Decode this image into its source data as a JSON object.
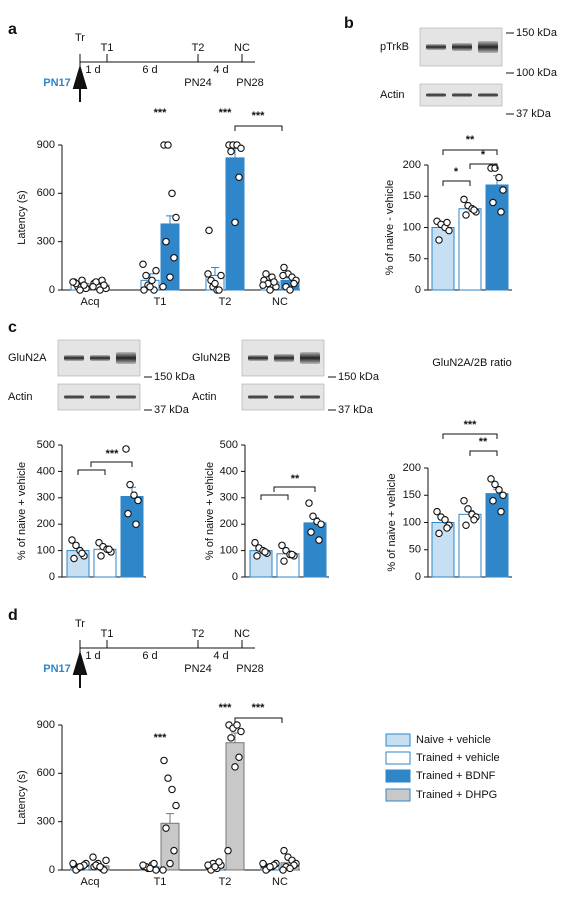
{
  "labels": [
    "a",
    "b",
    "c",
    "d"
  ],
  "timelines": [
    {
      "marks": [
        "Tr",
        "T1",
        "T2",
        "NC"
      ],
      "intervals": [
        "1 d",
        "6 d",
        "4 d"
      ],
      "ages": [
        "PN17",
        "PN24",
        "PN28"
      ]
    },
    {
      "marks": [
        "Tr",
        "T1",
        "T2",
        "NC"
      ],
      "intervals": [
        "1 d",
        "6 d",
        "4 d"
      ],
      "ages": [
        "PN17",
        "PN24",
        "PN28"
      ]
    }
  ],
  "blots": [
    {
      "rows": [
        "pTrkB",
        "Actin"
      ],
      "sizes": [
        "150 kDa",
        "100 kDa",
        "37 kDa"
      ]
    },
    {
      "rows": [
        "GluN2A",
        "Actin"
      ],
      "sizes": [
        "150 kDa",
        "37 kDa"
      ]
    },
    {
      "rows": [
        "GluN2B",
        "Actin"
      ],
      "sizes": [
        "150 kDa",
        "37 kDa"
      ]
    }
  ],
  "legend": [
    {
      "name": "Naive + vehicle",
      "color": "#c6dff2"
    },
    {
      "name": "Trained + vehicle",
      "color": "#ffffff"
    },
    {
      "name": "Trained + BDNF",
      "color": "#2f86c9"
    },
    {
      "name": "Trained + DHPG",
      "color": "#c8c8c8"
    }
  ],
  "chart_data": [
    {
      "type": "bar",
      "categories": [
        "Acq",
        "T1",
        "T2",
        "NC"
      ],
      "ylabel": "Latency (s)",
      "ylim": [
        0,
        900
      ],
      "yticks": [
        0,
        300,
        600,
        900
      ],
      "annotations": [
        "***",
        "***",
        "***"
      ],
      "series": [
        {
          "color": "#ffffff",
          "values": [
            40,
            60,
            90,
            50
          ],
          "errors": [
            10,
            40,
            50,
            12
          ],
          "points": [
            [
              50,
              20,
              60,
              10,
              40,
              30,
              0,
              50
            ],
            [
              0,
              30,
              60,
              120,
              90,
              0,
              20,
              160
            ],
            [
              370,
              20,
              0,
              90,
              60,
              0,
              40,
              100
            ],
            [
              60,
              40,
              80,
              20,
              100,
              50,
              0,
              30
            ]
          ]
        },
        {
          "color": "#2f86c9",
          "values": [
            30,
            410,
            820,
            60
          ],
          "errors": [
            8,
            50,
            60,
            15
          ],
          "points": [
            [
              40,
              20,
              60,
              10,
              50,
              30,
              0,
              20
            ],
            [
              900,
              900,
              600,
              450,
              300,
              200,
              80,
              20
            ],
            [
              900,
              900,
              900,
              880,
              860,
              700,
              420
            ],
            [
              140,
              100,
              80,
              60,
              20,
              40,
              0,
              90
            ]
          ]
        }
      ]
    },
    {
      "type": "bar",
      "ylabel": "% of naive - vehicle",
      "ylim": [
        0,
        200
      ],
      "yticks": [
        0,
        50,
        100,
        150,
        200
      ],
      "annotations": [
        "**",
        "*",
        "*"
      ],
      "series": [
        {
          "color": "#c6dff2",
          "values": [
            100
          ],
          "errors": [
            6
          ],
          "points": [
            [
              110,
              105,
              100,
              95,
              80,
              108
            ]
          ]
        },
        {
          "color": "#ffffff",
          "values": [
            130
          ],
          "errors": [
            5
          ],
          "points": [
            [
              145,
              135,
              130,
              125,
              120,
              128
            ]
          ]
        },
        {
          "color": "#2f86c9",
          "values": [
            168
          ],
          "errors": [
            15
          ],
          "points": [
            [
              195,
              195,
              180,
              160,
              140,
              125
            ]
          ]
        }
      ]
    },
    {
      "type": "bar",
      "ylabel": "% of naive + vehicle",
      "ylim": [
        0,
        500
      ],
      "yticks": [
        0,
        100,
        200,
        300,
        400,
        500
      ],
      "annotations": [
        "***"
      ],
      "series": [
        {
          "color": "#c6dff2",
          "values": [
            100
          ],
          "errors": [
            12
          ],
          "points": [
            [
              140,
              120,
              100,
              80,
              70,
              90
            ]
          ]
        },
        {
          "color": "#ffffff",
          "values": [
            105
          ],
          "errors": [
            10
          ],
          "points": [
            [
              130,
              115,
              105,
              95,
              80,
              105
            ]
          ]
        },
        {
          "color": "#2f86c9",
          "values": [
            305
          ],
          "errors": [
            35
          ],
          "points": [
            [
              485,
              350,
              310,
              290,
              240,
              200
            ]
          ]
        }
      ]
    },
    {
      "type": "bar",
      "ylabel": "% of naive + vehicle",
      "ylim": [
        0,
        500
      ],
      "yticks": [
        0,
        100,
        200,
        300,
        400,
        500
      ],
      "annotations": [
        "**"
      ],
      "series": [
        {
          "color": "#c6dff2",
          "values": [
            100
          ],
          "errors": [
            10
          ],
          "points": [
            [
              130,
              110,
              100,
              90,
              80,
              95
            ]
          ]
        },
        {
          "color": "#ffffff",
          "values": [
            88
          ],
          "errors": [
            10
          ],
          "points": [
            [
              120,
              100,
              85,
              80,
              60,
              85
            ]
          ]
        },
        {
          "color": "#2f86c9",
          "values": [
            205
          ],
          "errors": [
            20
          ],
          "points": [
            [
              280,
              230,
              210,
              200,
              170,
              140
            ]
          ]
        }
      ]
    },
    {
      "type": "bar",
      "title": "GluN2A/2B ratio",
      "ylabel": "% of naive + vehicle",
      "ylim": [
        0,
        200
      ],
      "yticks": [
        0,
        50,
        100,
        150,
        200
      ],
      "annotations": [
        "***",
        "**"
      ],
      "series": [
        {
          "color": "#c6dff2",
          "values": [
            100
          ],
          "errors": [
            7
          ],
          "points": [
            [
              120,
              110,
              105,
              95,
              80,
              90
            ]
          ]
        },
        {
          "color": "#ffffff",
          "values": [
            115
          ],
          "errors": [
            7
          ],
          "points": [
            [
              140,
              125,
              115,
              110,
              95,
              105
            ]
          ]
        },
        {
          "color": "#2f86c9",
          "values": [
            153
          ],
          "errors": [
            8
          ],
          "points": [
            [
              180,
              170,
              160,
              150,
              140,
              120
            ]
          ]
        }
      ]
    },
    {
      "type": "bar",
      "categories": [
        "Acq",
        "T1",
        "T2",
        "NC"
      ],
      "ylabel": "Latency (s)",
      "ylim": [
        0,
        900
      ],
      "yticks": [
        0,
        300,
        600,
        900
      ],
      "annotations": [
        "***",
        "***",
        "***"
      ],
      "series": [
        {
          "color": "#ffffff",
          "values": [
            25,
            20,
            25,
            25
          ],
          "errors": [
            5,
            5,
            5,
            5
          ],
          "points": [
            [
              30,
              10,
              20,
              40,
              0,
              30,
              20,
              40
            ],
            [
              20,
              10,
              30,
              0,
              20,
              40,
              10,
              30
            ],
            [
              20,
              40,
              10,
              30,
              0,
              50,
              20,
              30
            ],
            [
              30,
              10,
              20,
              40,
              0,
              30,
              20,
              40
            ]
          ]
        },
        {
          "color": "#c8c8c8",
          "values": [
            25,
            290,
            790,
            45
          ],
          "errors": [
            6,
            60,
            60,
            15
          ],
          "points": [
            [
              20,
              40,
              10,
              60,
              30,
              0,
              20,
              80
            ],
            [
              680,
              570,
              500,
              400,
              260,
              120,
              40,
              0
            ],
            [
              900,
              880,
              900,
              860,
              820,
              700,
              640,
              120
            ],
            [
              120,
              80,
              60,
              40,
              20,
              30,
              10,
              0
            ]
          ]
        }
      ]
    }
  ]
}
